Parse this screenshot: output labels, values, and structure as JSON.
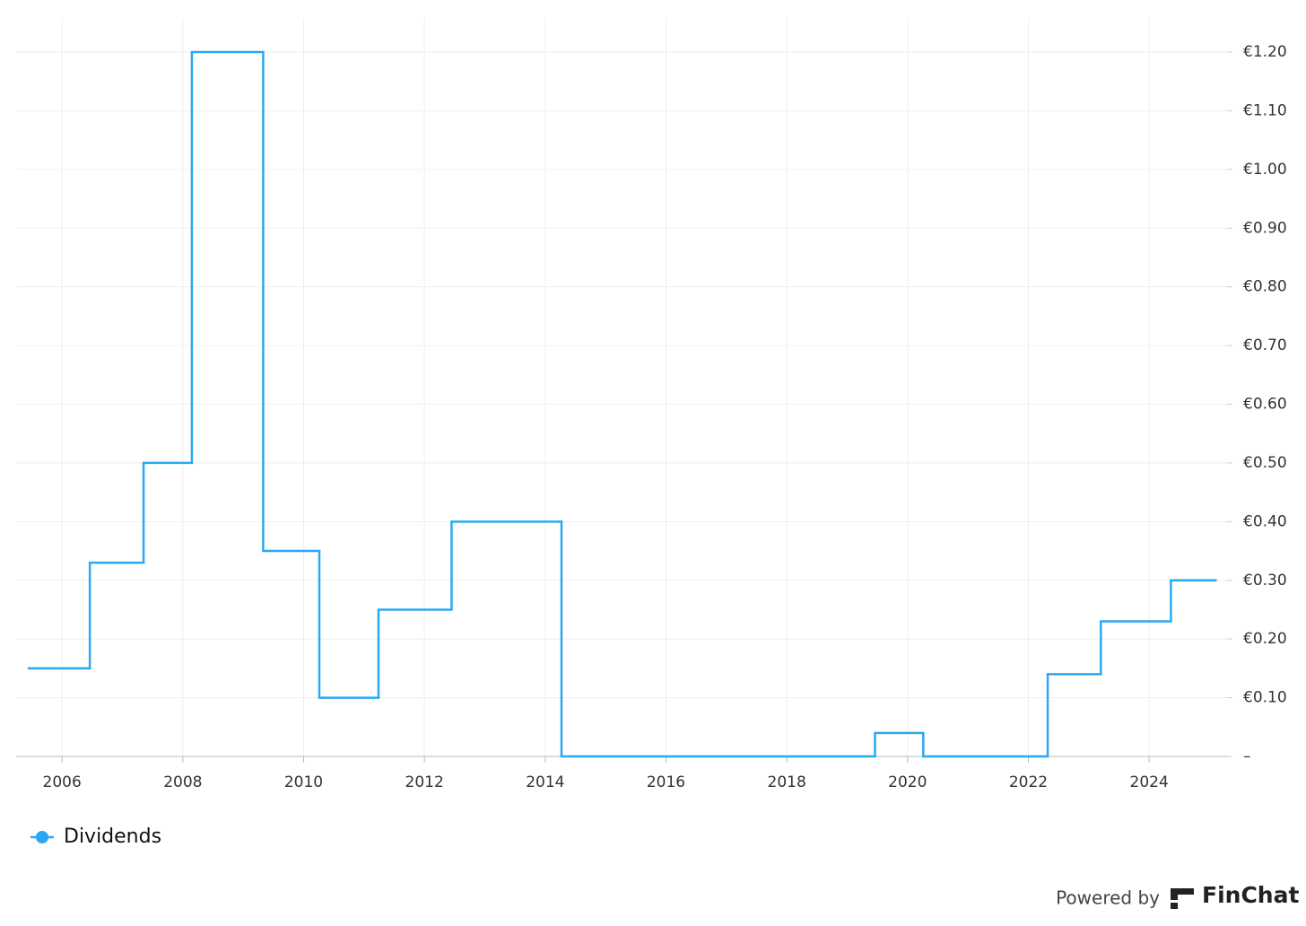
{
  "chart_data": {
    "type": "line",
    "line_style": "step-after",
    "x": [
      2005.45,
      2006.46,
      2007.35,
      2008.15,
      2009.33,
      2010.26,
      2011.24,
      2012.45,
      2014.27,
      2019.46,
      2020.26,
      2022.32,
      2023.2,
      2024.36,
      2025.1
    ],
    "series": [
      {
        "name": "Dividends",
        "color": "#2aa8f2",
        "values": [
          0.15,
          0.33,
          0.5,
          1.2,
          0.35,
          0.1,
          0.25,
          0.4,
          0,
          0.04,
          0,
          0.14,
          0.23,
          0.3,
          0.3
        ]
      }
    ],
    "xlim": [
      2005.24,
      2025.29
    ],
    "xticks": [
      2006,
      2008,
      2010,
      2012,
      2014,
      2016,
      2018,
      2020,
      2022,
      2024
    ],
    "ylim": [
      0,
      1.2
    ],
    "yticks": [
      {
        "value": 0,
        "label": "–"
      },
      {
        "value": 0.1,
        "label": "€0.10"
      },
      {
        "value": 0.2,
        "label": "€0.20"
      },
      {
        "value": 0.3,
        "label": "€0.30"
      },
      {
        "value": 0.4,
        "label": "€0.40"
      },
      {
        "value": 0.5,
        "label": "€0.50"
      },
      {
        "value": 0.6,
        "label": "€0.60"
      },
      {
        "value": 0.7,
        "label": "€0.70"
      },
      {
        "value": 0.8,
        "label": "€0.80"
      },
      {
        "value": 0.9,
        "label": "€0.90"
      },
      {
        "value": 1.0,
        "label": "€1.00"
      },
      {
        "value": 1.1,
        "label": "€1.10"
      },
      {
        "value": 1.2,
        "label": "€1.20"
      }
    ],
    "grid": true,
    "y_axis_side": "right",
    "legend": "bottom-left",
    "attribution": {
      "prefix": "Powered by",
      "brand": "FinChat"
    }
  }
}
